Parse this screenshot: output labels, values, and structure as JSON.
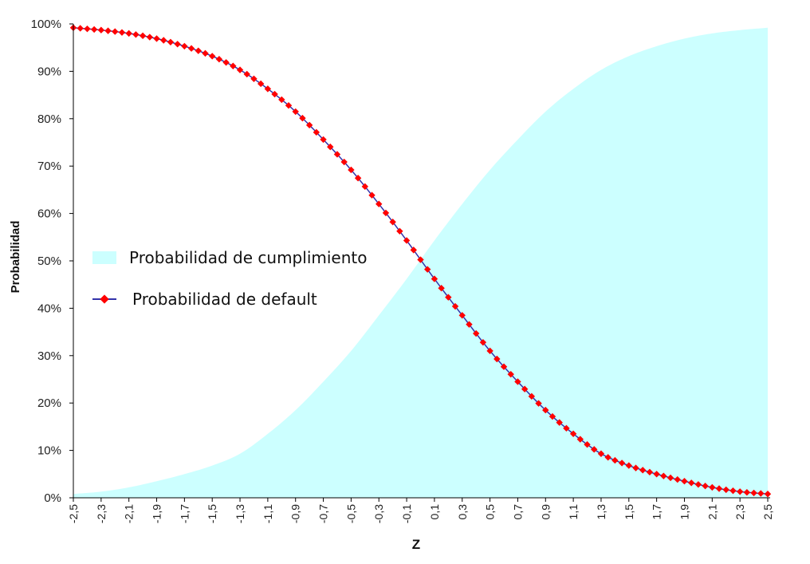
{
  "chart_data": {
    "type": "area",
    "xlabel": "Z",
    "ylabel": "Probabilidad",
    "xlim": [
      -2.5,
      2.5
    ],
    "ylim": [
      0,
      1
    ],
    "x_tick_labels": [
      "-2,5",
      "-2,3",
      "-2,1",
      "-1,9",
      "-1,7",
      "-1,5",
      "-1,3",
      "-1,1",
      "-0,9",
      "-0,7",
      "-0,5",
      "-0,3",
      "-0,1",
      "0,1",
      "0,3",
      "0,5",
      "0,7",
      "0,9",
      "1,1",
      "1,3",
      "1,5",
      "1,7",
      "1,9",
      "2,1",
      "2,3",
      "2,5"
    ],
    "y_tick_labels": [
      "0%",
      "10%",
      "20%",
      "30%",
      "40%",
      "50%",
      "60%",
      "70%",
      "80%",
      "90%",
      "100%"
    ],
    "legend_position": "left-middle",
    "grid": false,
    "x": [
      -2.5,
      -2.3,
      -2.1,
      -1.9,
      -1.7,
      -1.5,
      -1.3,
      -1.1,
      -0.9,
      -0.7,
      -0.5,
      -0.3,
      -0.1,
      0.1,
      0.3,
      0.5,
      0.7,
      0.9,
      1.1,
      1.3,
      1.5,
      1.7,
      1.9,
      2.1,
      2.3,
      2.5
    ],
    "series": [
      {
        "name": "Probabilidad de cumplimiento",
        "kind": "area",
        "color": "#ccffff",
        "values": [
          0.008,
          0.013,
          0.022,
          0.035,
          0.05,
          0.068,
          0.093,
          0.135,
          0.185,
          0.245,
          0.31,
          0.385,
          0.462,
          0.543,
          0.62,
          0.692,
          0.756,
          0.815,
          0.863,
          0.903,
          0.932,
          0.953,
          0.969,
          0.98,
          0.987,
          0.992
        ]
      },
      {
        "name": "Probabilidad de default",
        "kind": "line",
        "color": "#3333aa",
        "marker_color": "#ff0000",
        "values": [
          0.992,
          0.987,
          0.98,
          0.969,
          0.953,
          0.932,
          0.903,
          0.863,
          0.815,
          0.756,
          0.692,
          0.62,
          0.543,
          0.462,
          0.385,
          0.31,
          0.245,
          0.185,
          0.135,
          0.093,
          0.068,
          0.05,
          0.035,
          0.022,
          0.013,
          0.008
        ]
      }
    ]
  }
}
